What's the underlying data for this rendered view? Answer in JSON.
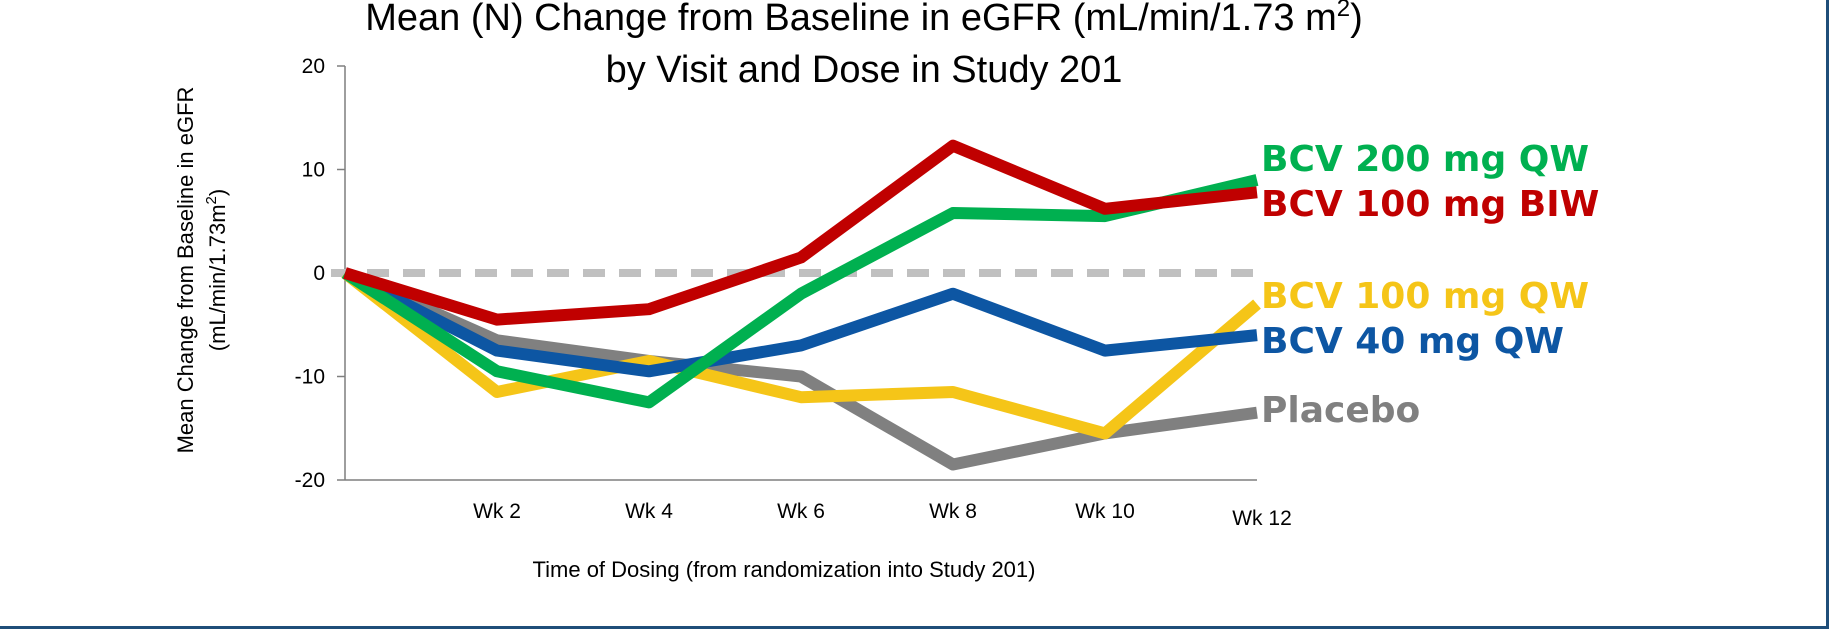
{
  "chart_data": {
    "type": "line",
    "title_main": "Mean (N) Change from Baseline in eGFR (mL/min/1.73 m",
    "title_sup": "2",
    "title_close": ")",
    "subtitle": "by Visit and Dose in Study 201",
    "ylabel_line1": "Mean Change from Baseline in eGFR",
    "ylabel_line2_pre": "(mL/min/1.73m",
    "ylabel_line2_sup": "2",
    "ylabel_line2_post": ")",
    "xlabel": "Time of Dosing (from randomization into Study 201)",
    "x": [
      0,
      2,
      4,
      6,
      8,
      10,
      12
    ],
    "x_tick_labels": [
      "Wk 2",
      "Wk 4",
      "Wk 6",
      "Wk 8",
      "Wk 10",
      "Wk 12"
    ],
    "y_ticks": [
      20,
      10,
      0,
      -10,
      -20
    ],
    "ylim": [
      -20,
      20
    ],
    "reference_line": 0,
    "legend_position": "right",
    "series": [
      {
        "name": "Placebo",
        "color": "#808080",
        "values": [
          0,
          -6.5,
          -8.5,
          -10,
          -18.5,
          -15.5,
          -13.5
        ]
      },
      {
        "name": "BCV 100 mg QW",
        "color": "#f5c518",
        "values": [
          0,
          -11.5,
          -8.5,
          -12,
          -11.5,
          -15.5,
          -3
        ]
      },
      {
        "name": "BCV 40 mg QW",
        "color": "#0d56a3",
        "values": [
          0,
          -7.5,
          -9.5,
          -7,
          -2,
          -7.5,
          -6
        ]
      },
      {
        "name": "BCV 200 mg QW",
        "color": "#00b050",
        "values": [
          0,
          -9.5,
          -12.5,
          -2,
          5.8,
          5.5,
          9
        ]
      },
      {
        "name": "BCV 100 mg BIW",
        "color": "#c00000",
        "values": [
          0,
          -4.5,
          -3.5,
          1.5,
          12.3,
          6.2,
          7.8
        ]
      }
    ],
    "legend_order": [
      "BCV 200 mg QW",
      "BCV 100 mg BIW",
      "BCV 100 mg QW",
      "BCV 40 mg QW",
      "Placebo"
    ]
  }
}
